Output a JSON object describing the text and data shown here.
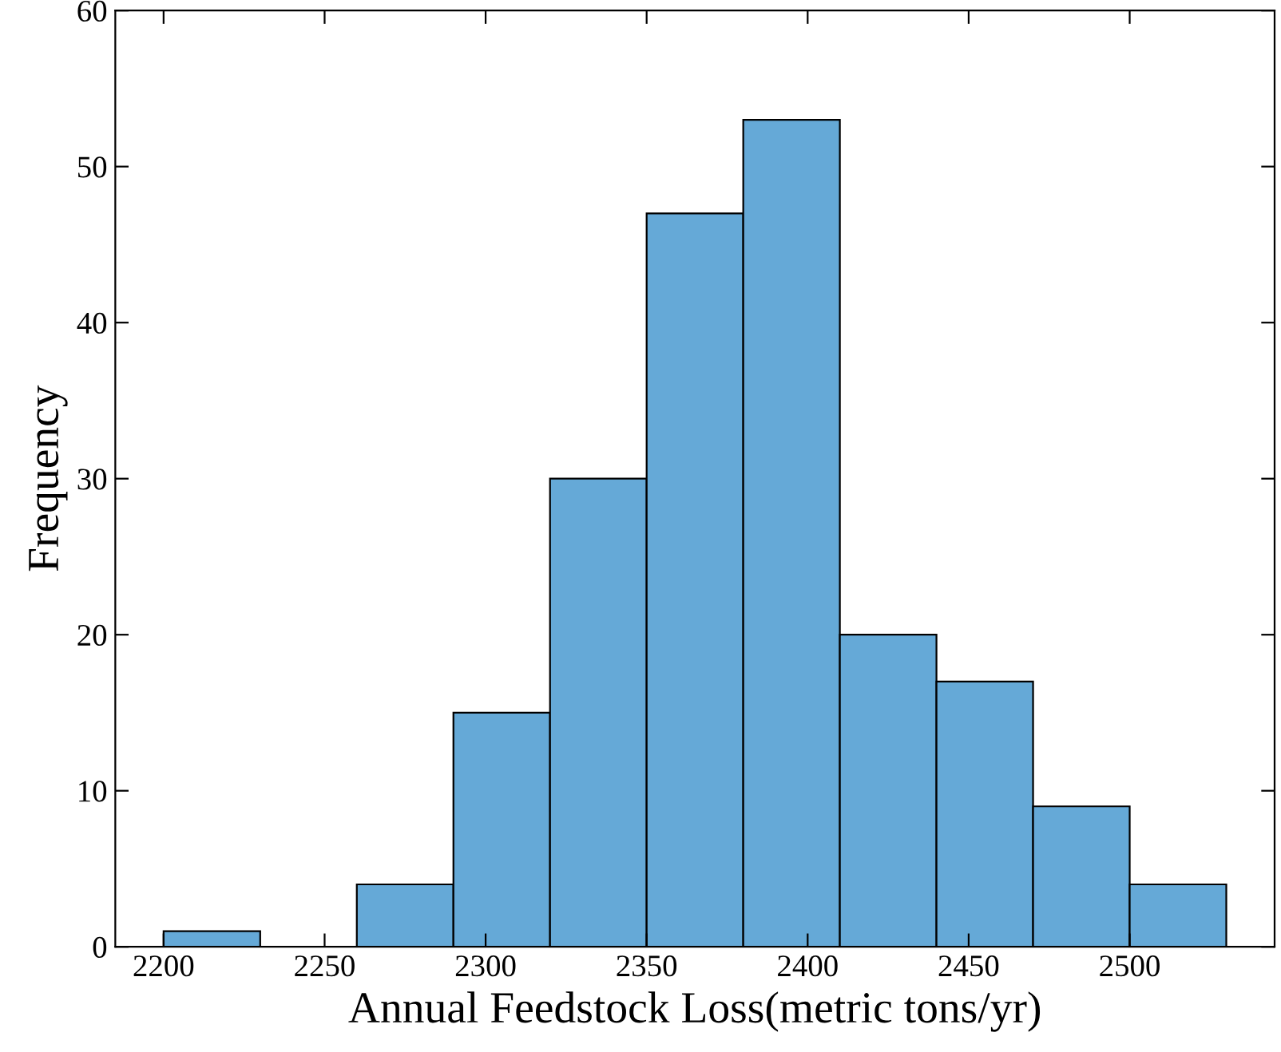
{
  "chart_data": {
    "type": "histogram",
    "xlabel": "Annual Feedstock Loss(metric tons/yr)",
    "ylabel": "Frequency",
    "bins": [
      2200,
      2230,
      2260,
      2290,
      2320,
      2350,
      2380,
      2410,
      2440,
      2470,
      2500,
      2530
    ],
    "values": [
      1,
      0,
      4,
      15,
      30,
      47,
      53,
      20,
      17,
      9,
      4
    ],
    "color": "#65a9d7",
    "xlim": [
      2185,
      2545
    ],
    "xticks": [
      2200,
      2250,
      2300,
      2350,
      2400,
      2450,
      2500
    ],
    "ylim": [
      0,
      60
    ],
    "yticks": [
      0,
      10,
      20,
      30,
      40,
      50,
      60
    ],
    "grid": false
  }
}
